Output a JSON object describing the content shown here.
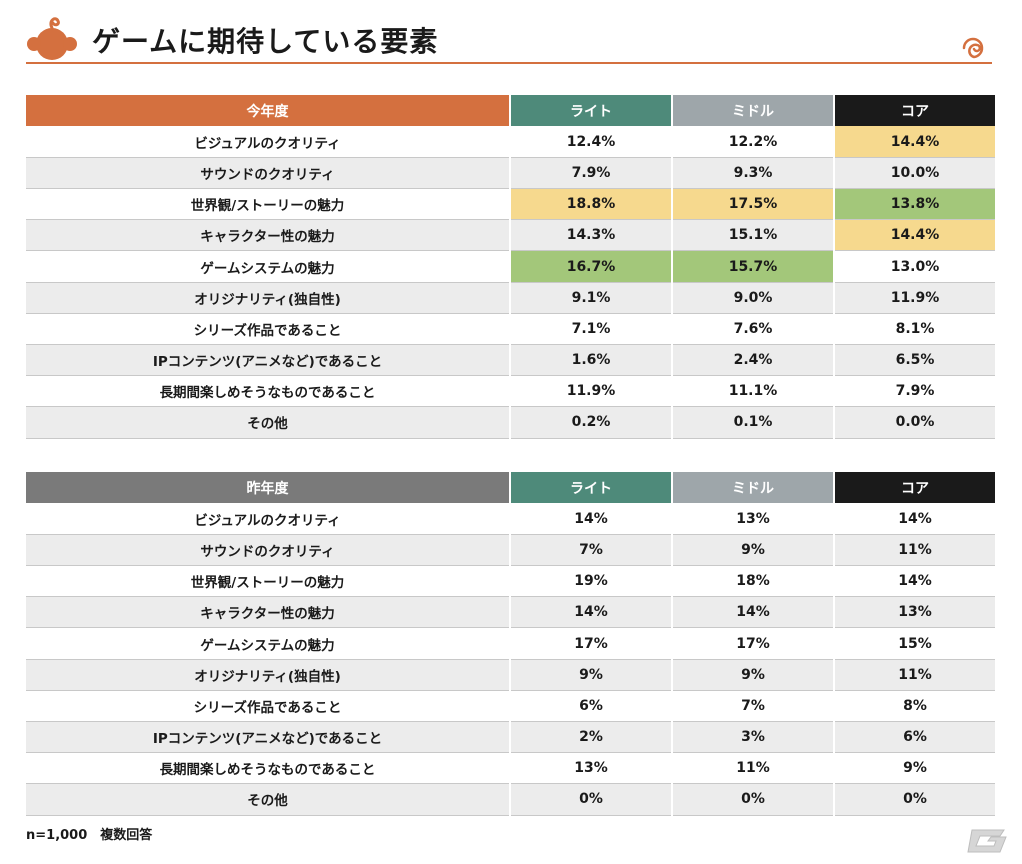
{
  "page": {
    "title": "ゲームに期待している要素",
    "footnote": "n=1,000　複数回答"
  },
  "colors": {
    "accent": "#d4703f",
    "light": "#4e8a7a",
    "middle": "#9ea6aa",
    "core": "#1a1a1a",
    "last_year_header": "#7a7a7a",
    "highlight_yellow": "#f6d98e",
    "highlight_green": "#a3c77a"
  },
  "this_year": {
    "header": [
      "今年度",
      "ライト",
      "ミドル",
      "コア"
    ],
    "rows": [
      {
        "label": "ビジュアルのクオリティ",
        "values": [
          "12.4%",
          "12.2%",
          "14.4%"
        ],
        "hl": [
          "",
          "",
          "yellow"
        ]
      },
      {
        "label": "サウンドのクオリティ",
        "values": [
          "7.9%",
          "9.3%",
          "10.0%"
        ],
        "hl": [
          "",
          "",
          ""
        ]
      },
      {
        "label": "世界観/ストーリーの魅力",
        "values": [
          "18.8%",
          "17.5%",
          "13.8%"
        ],
        "hl": [
          "yellow",
          "yellow",
          "green"
        ]
      },
      {
        "label": "キャラクター性の魅力",
        "values": [
          "14.3%",
          "15.1%",
          "14.4%"
        ],
        "hl": [
          "",
          "",
          "yellow"
        ]
      },
      {
        "label": "ゲームシステムの魅力",
        "values": [
          "16.7%",
          "15.7%",
          "13.0%"
        ],
        "hl": [
          "green",
          "green",
          ""
        ]
      },
      {
        "label": "オリジナリティ(独自性)",
        "values": [
          "9.1%",
          "9.0%",
          "11.9%"
        ],
        "hl": [
          "",
          "",
          ""
        ]
      },
      {
        "label": "シリーズ作品であること",
        "values": [
          "7.1%",
          "7.6%",
          "8.1%"
        ],
        "hl": [
          "",
          "",
          ""
        ]
      },
      {
        "label": "IPコンテンツ(アニメなど)であること",
        "values": [
          "1.6%",
          "2.4%",
          "6.5%"
        ],
        "hl": [
          "",
          "",
          ""
        ]
      },
      {
        "label": "長期間楽しめそうなものであること",
        "values": [
          "11.9%",
          "11.1%",
          "7.9%"
        ],
        "hl": [
          "",
          "",
          ""
        ]
      },
      {
        "label": "その他",
        "values": [
          "0.2%",
          "0.1%",
          "0.0%"
        ],
        "hl": [
          "",
          "",
          ""
        ]
      }
    ]
  },
  "last_year": {
    "header": [
      "昨年度",
      "ライト",
      "ミドル",
      "コア"
    ],
    "rows": [
      {
        "label": "ビジュアルのクオリティ",
        "values": [
          "14%",
          "13%",
          "14%"
        ]
      },
      {
        "label": "サウンドのクオリティ",
        "values": [
          "7%",
          "9%",
          "11%"
        ]
      },
      {
        "label": "世界観/ストーリーの魅力",
        "values": [
          "19%",
          "18%",
          "14%"
        ]
      },
      {
        "label": "キャラクター性の魅力",
        "values": [
          "14%",
          "14%",
          "13%"
        ]
      },
      {
        "label": "ゲームシステムの魅力",
        "values": [
          "17%",
          "17%",
          "15%"
        ]
      },
      {
        "label": "オリジナリティ(独自性)",
        "values": [
          "9%",
          "9%",
          "11%"
        ]
      },
      {
        "label": "シリーズ作品であること",
        "values": [
          "6%",
          "7%",
          "8%"
        ]
      },
      {
        "label": "IPコンテンツ(アニメなど)であること",
        "values": [
          "2%",
          "3%",
          "6%"
        ]
      },
      {
        "label": "長期間楽しめそうなものであること",
        "values": [
          "13%",
          "11%",
          "9%"
        ]
      },
      {
        "label": "その他",
        "values": [
          "0%",
          "0%",
          "0%"
        ]
      }
    ]
  },
  "icons": {
    "header_logo": "orange-mascot-icon",
    "header_swirl": "swirl-icon",
    "corner_logo": "gamer-g-logo-icon"
  }
}
